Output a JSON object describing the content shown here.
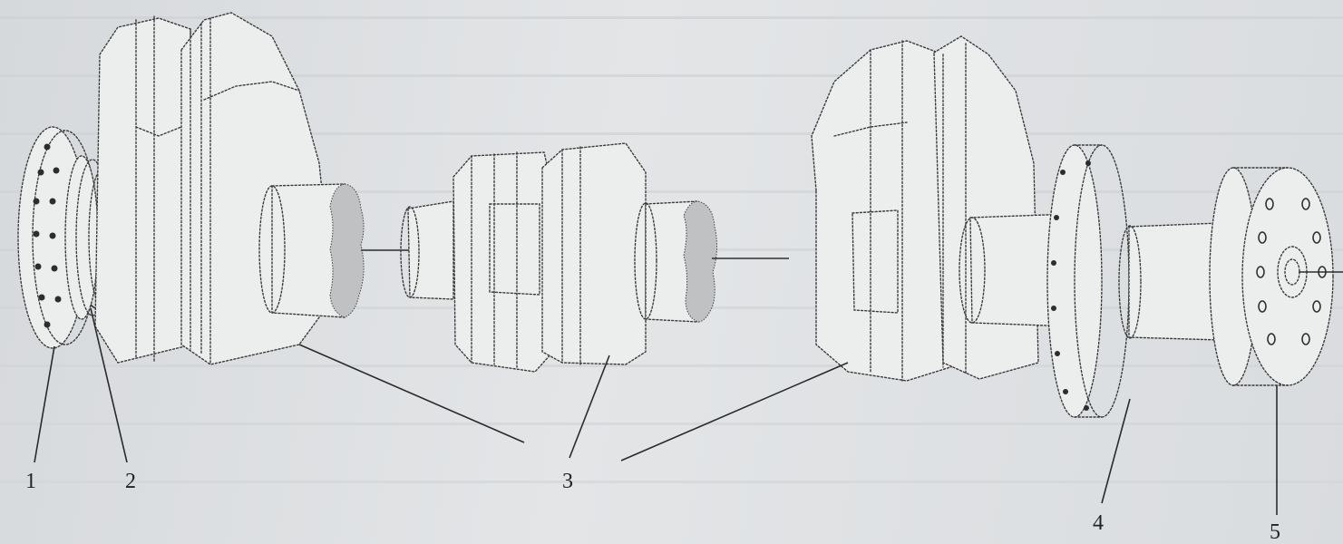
{
  "figure": {
    "callouts": [
      {
        "id": "c1",
        "label": "1"
      },
      {
        "id": "c2",
        "label": "2"
      },
      {
        "id": "c3",
        "label": "3"
      },
      {
        "id": "c4",
        "label": "4"
      },
      {
        "id": "c5",
        "label": "5"
      }
    ]
  }
}
